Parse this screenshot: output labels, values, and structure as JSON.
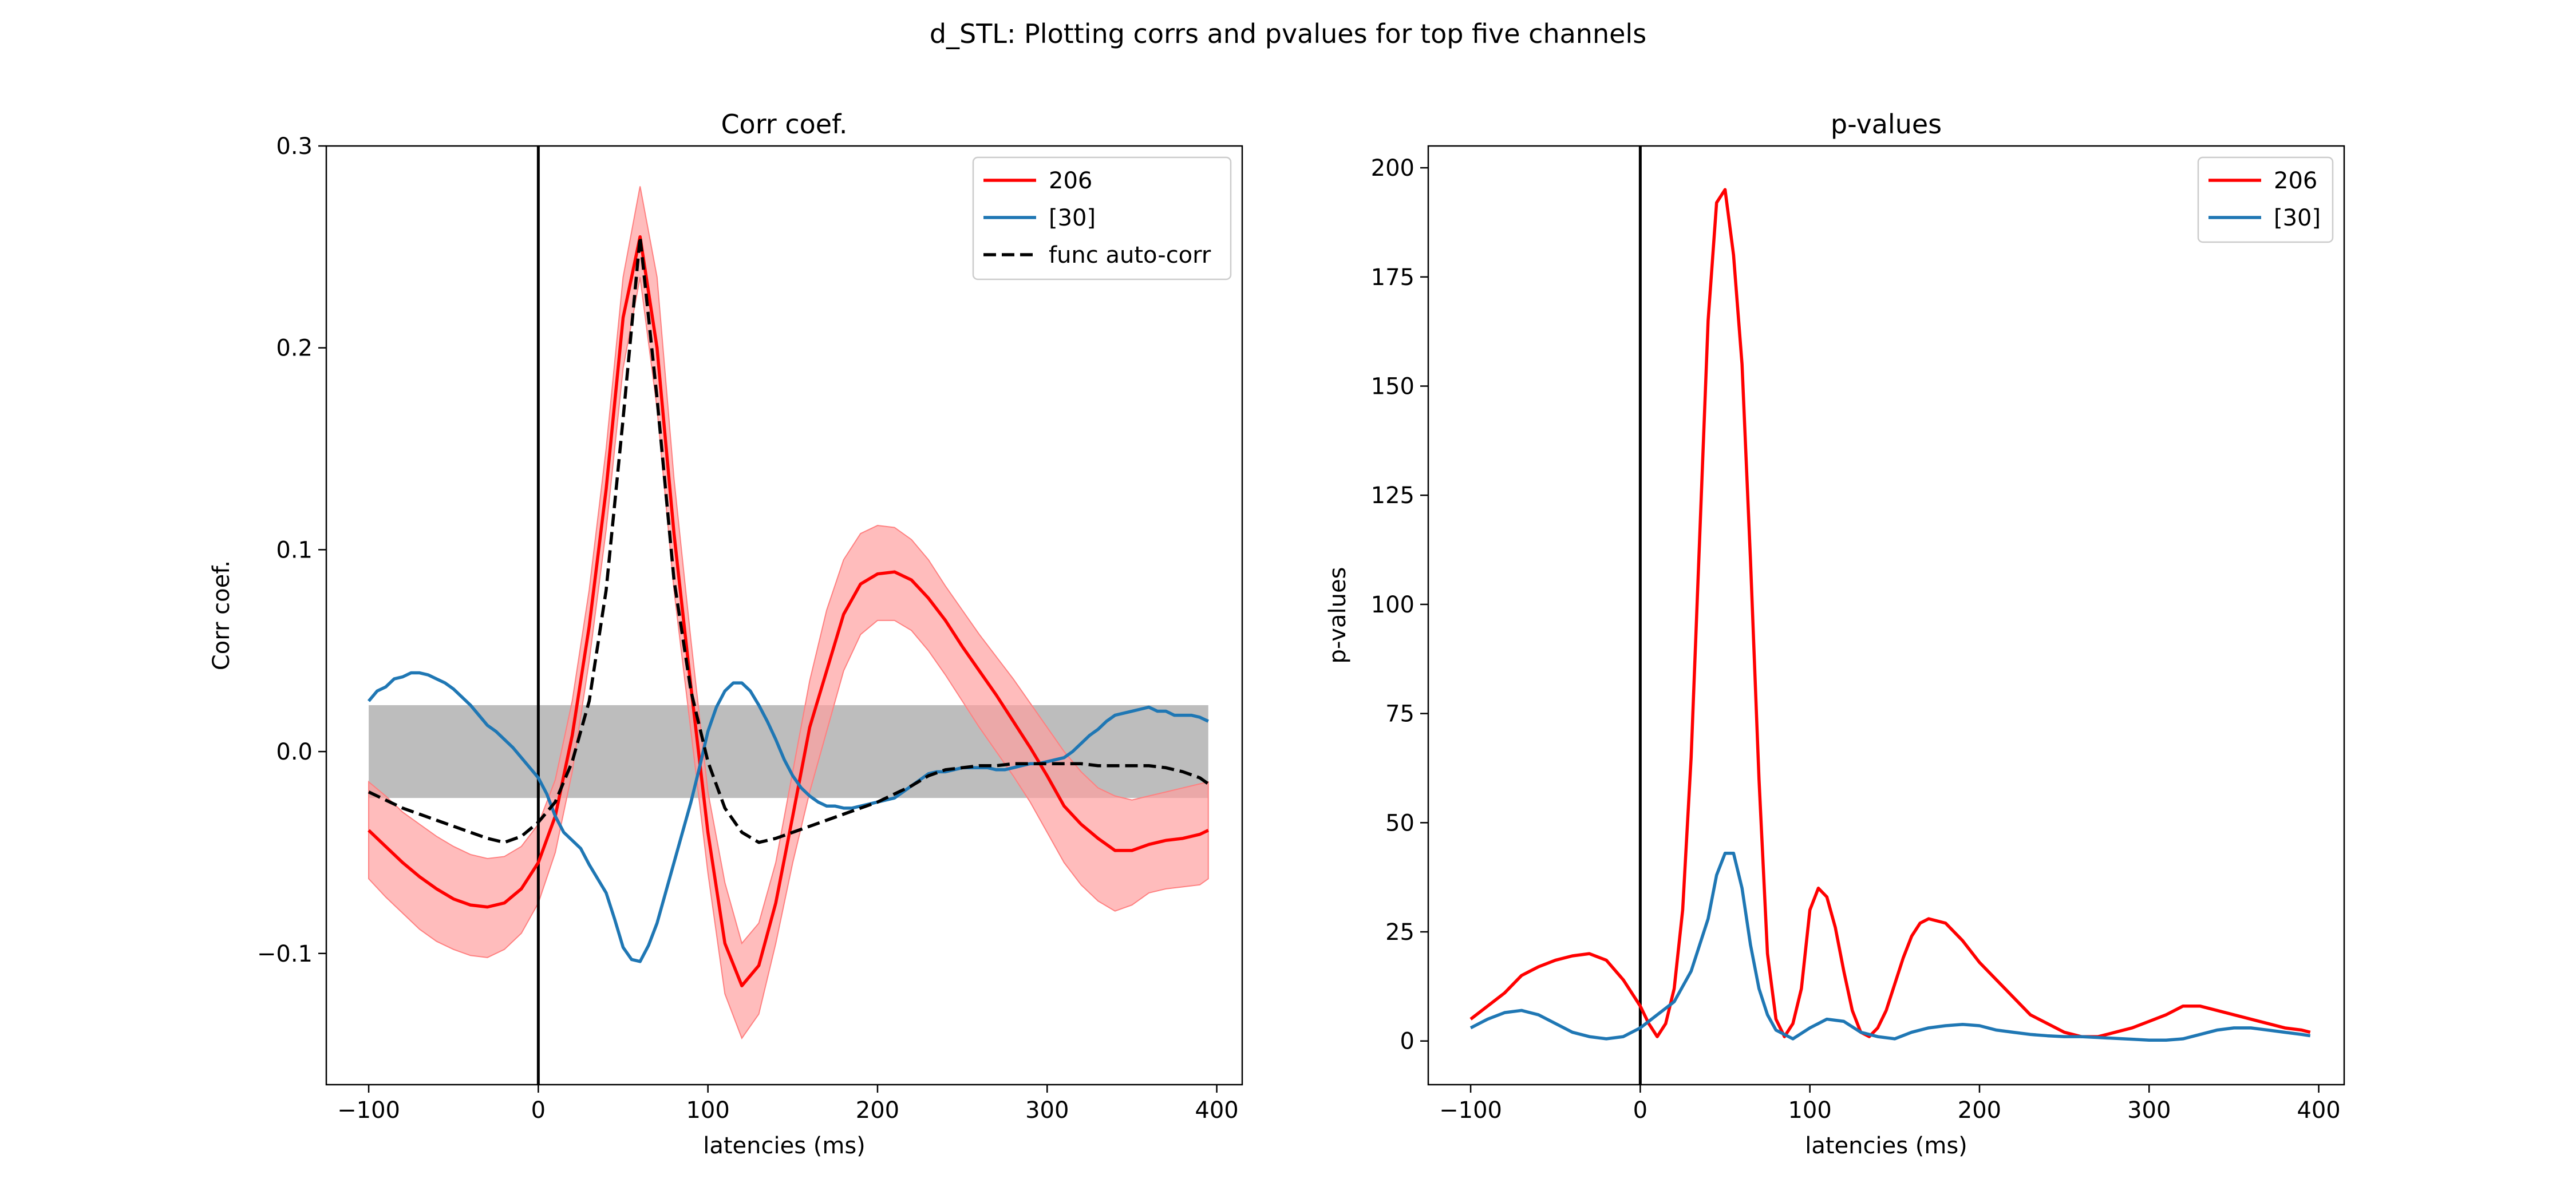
{
  "figure": {
    "suptitle": "d_STL: Plotting corrs and pvalues for top five channels"
  },
  "colors": {
    "red": "#ff0000",
    "blue": "#1f77b4",
    "black": "#000000",
    "red_band": "#ff9f9f",
    "grey_band": "#bdbdbd"
  },
  "chart_data": [
    {
      "type": "line",
      "title": "Corr coef.",
      "xlabel": "latencies (ms)",
      "ylabel": "Corr coef.",
      "xlim": [
        -125,
        415
      ],
      "ylim": [
        -0.165,
        0.3
      ],
      "xticks": [
        -100,
        0,
        100,
        200,
        300,
        400
      ],
      "xtick_labels": [
        "−100",
        "0",
        "100",
        "200",
        "300",
        "400"
      ],
      "yticks": [
        -0.1,
        0.0,
        0.1,
        0.2,
        0.3
      ],
      "ytick_labels": [
        "−0.1",
        "0.0",
        "0.1",
        "0.2",
        "0.3"
      ],
      "grid": false,
      "legend_position": "top-right",
      "vertical_line_x": 0,
      "bands": [
        {
          "color": "grey_band",
          "x": [
            -100,
            395
          ],
          "lower": [
            -0.023,
            -0.023
          ],
          "upper": [
            0.023,
            0.023
          ]
        },
        {
          "color": "red_band",
          "x": [
            -100,
            -90,
            -80,
            -70,
            -60,
            -50,
            -40,
            -30,
            -20,
            -10,
            0,
            10,
            20,
            30,
            40,
            50,
            60,
            70,
            80,
            90,
            100,
            110,
            120,
            130,
            140,
            150,
            160,
            170,
            180,
            190,
            200,
            210,
            220,
            230,
            240,
            250,
            260,
            270,
            280,
            290,
            300,
            310,
            320,
            330,
            340,
            350,
            360,
            370,
            380,
            390,
            395
          ],
          "lower": [
            -0.063,
            -0.072,
            -0.08,
            -0.088,
            -0.094,
            -0.098,
            -0.101,
            -0.102,
            -0.098,
            -0.09,
            -0.075,
            -0.05,
            -0.01,
            0.045,
            0.11,
            0.19,
            0.235,
            0.17,
            0.08,
            0.01,
            -0.06,
            -0.12,
            -0.142,
            -0.13,
            -0.095,
            -0.055,
            -0.02,
            0.01,
            0.04,
            0.058,
            0.065,
            0.065,
            0.06,
            0.05,
            0.038,
            0.025,
            0.012,
            0.0,
            -0.012,
            -0.025,
            -0.04,
            -0.055,
            -0.066,
            -0.074,
            -0.079,
            -0.076,
            -0.07,
            -0.068,
            -0.067,
            -0.066,
            -0.063
          ],
          "upper": [
            -0.015,
            -0.022,
            -0.03,
            -0.036,
            -0.042,
            -0.047,
            -0.051,
            -0.053,
            -0.052,
            -0.047,
            -0.036,
            -0.014,
            0.025,
            0.08,
            0.15,
            0.235,
            0.28,
            0.235,
            0.135,
            0.055,
            -0.02,
            -0.065,
            -0.095,
            -0.085,
            -0.055,
            -0.01,
            0.035,
            0.07,
            0.095,
            0.108,
            0.112,
            0.111,
            0.105,
            0.095,
            0.082,
            0.07,
            0.058,
            0.047,
            0.036,
            0.024,
            0.012,
            0.0,
            -0.01,
            -0.018,
            -0.022,
            -0.024,
            -0.022,
            -0.02,
            -0.018,
            -0.016,
            -0.015
          ]
        }
      ],
      "series": [
        {
          "name": "206",
          "color": "red",
          "dash": "solid",
          "x": [
            -100,
            -90,
            -80,
            -70,
            -60,
            -50,
            -40,
            -30,
            -20,
            -10,
            0,
            10,
            20,
            30,
            40,
            50,
            60,
            70,
            80,
            90,
            100,
            110,
            120,
            130,
            140,
            150,
            160,
            170,
            180,
            190,
            200,
            210,
            220,
            230,
            240,
            250,
            260,
            270,
            280,
            290,
            300,
            310,
            320,
            330,
            340,
            350,
            360,
            370,
            380,
            390,
            395
          ],
          "values": [
            -0.039,
            -0.047,
            -0.055,
            -0.062,
            -0.068,
            -0.073,
            -0.076,
            -0.077,
            -0.075,
            -0.068,
            -0.055,
            -0.032,
            0.008,
            0.062,
            0.13,
            0.215,
            0.255,
            0.2,
            0.108,
            0.032,
            -0.04,
            -0.095,
            -0.116,
            -0.106,
            -0.075,
            -0.032,
            0.012,
            0.04,
            0.068,
            0.083,
            0.088,
            0.089,
            0.085,
            0.076,
            0.065,
            0.052,
            0.04,
            0.028,
            0.015,
            0.002,
            -0.012,
            -0.027,
            -0.036,
            -0.043,
            -0.049,
            -0.049,
            -0.046,
            -0.044,
            -0.043,
            -0.041,
            -0.039
          ]
        },
        {
          "name": "[30]",
          "color": "blue",
          "dash": "solid",
          "x": [
            -100,
            -95,
            -90,
            -85,
            -80,
            -75,
            -70,
            -65,
            -60,
            -55,
            -50,
            -45,
            -40,
            -35,
            -30,
            -25,
            -20,
            -15,
            -10,
            -5,
            0,
            5,
            10,
            15,
            20,
            25,
            30,
            35,
            40,
            45,
            50,
            55,
            60,
            65,
            70,
            75,
            80,
            85,
            90,
            95,
            100,
            105,
            110,
            115,
            120,
            125,
            130,
            135,
            140,
            145,
            150,
            155,
            160,
            165,
            170,
            175,
            180,
            185,
            190,
            195,
            200,
            205,
            210,
            215,
            220,
            225,
            230,
            235,
            240,
            245,
            250,
            255,
            260,
            265,
            270,
            275,
            280,
            285,
            290,
            295,
            300,
            305,
            310,
            315,
            320,
            325,
            330,
            335,
            340,
            345,
            350,
            355,
            360,
            365,
            370,
            375,
            380,
            385,
            390,
            395
          ],
          "values": [
            0.025,
            0.03,
            0.032,
            0.036,
            0.037,
            0.039,
            0.039,
            0.038,
            0.036,
            0.034,
            0.031,
            0.027,
            0.023,
            0.018,
            0.013,
            0.01,
            0.006,
            0.002,
            -0.003,
            -0.008,
            -0.013,
            -0.021,
            -0.032,
            -0.04,
            -0.044,
            -0.048,
            -0.056,
            -0.063,
            -0.07,
            -0.083,
            -0.097,
            -0.103,
            -0.104,
            -0.096,
            -0.085,
            -0.07,
            -0.055,
            -0.04,
            -0.025,
            -0.008,
            0.01,
            0.022,
            0.03,
            0.034,
            0.034,
            0.03,
            0.023,
            0.015,
            0.006,
            -0.004,
            -0.012,
            -0.018,
            -0.022,
            -0.025,
            -0.027,
            -0.027,
            -0.028,
            -0.028,
            -0.027,
            -0.026,
            -0.025,
            -0.024,
            -0.023,
            -0.02,
            -0.017,
            -0.014,
            -0.011,
            -0.01,
            -0.01,
            -0.009,
            -0.008,
            -0.008,
            -0.008,
            -0.008,
            -0.009,
            -0.009,
            -0.008,
            -0.007,
            -0.006,
            -0.006,
            -0.005,
            -0.004,
            -0.003,
            0.0,
            0.004,
            0.008,
            0.011,
            0.015,
            0.018,
            0.019,
            0.02,
            0.021,
            0.022,
            0.02,
            0.02,
            0.018,
            0.018,
            0.018,
            0.017,
            0.015
          ]
        },
        {
          "name": "func auto-corr",
          "color": "black",
          "dash": "dashed",
          "x": [
            -100,
            -90,
            -80,
            -70,
            -60,
            -50,
            -40,
            -30,
            -20,
            -10,
            0,
            10,
            20,
            30,
            40,
            50,
            60,
            70,
            80,
            90,
            100,
            110,
            120,
            130,
            140,
            150,
            160,
            170,
            180,
            190,
            200,
            210,
            220,
            230,
            240,
            250,
            260,
            270,
            280,
            290,
            300,
            310,
            320,
            330,
            340,
            350,
            360,
            370,
            380,
            390,
            395
          ],
          "values": [
            -0.02,
            -0.024,
            -0.028,
            -0.031,
            -0.034,
            -0.037,
            -0.04,
            -0.043,
            -0.045,
            -0.042,
            -0.035,
            -0.025,
            -0.005,
            0.025,
            0.08,
            0.165,
            0.255,
            0.175,
            0.085,
            0.03,
            -0.005,
            -0.028,
            -0.04,
            -0.045,
            -0.043,
            -0.04,
            -0.037,
            -0.034,
            -0.031,
            -0.028,
            -0.025,
            -0.021,
            -0.017,
            -0.012,
            -0.009,
            -0.008,
            -0.007,
            -0.007,
            -0.006,
            -0.006,
            -0.006,
            -0.006,
            -0.006,
            -0.007,
            -0.007,
            -0.007,
            -0.007,
            -0.008,
            -0.01,
            -0.013,
            -0.016
          ]
        }
      ]
    },
    {
      "type": "line",
      "title": "p-values",
      "xlabel": "latencies (ms)",
      "ylabel": "p-values",
      "xlim": [
        -125,
        415
      ],
      "ylim": [
        -10,
        205
      ],
      "xticks": [
        -100,
        0,
        100,
        200,
        300,
        400
      ],
      "xtick_labels": [
        "−100",
        "0",
        "100",
        "200",
        "300",
        "400"
      ],
      "yticks": [
        0,
        25,
        50,
        75,
        100,
        125,
        150,
        175,
        200
      ],
      "ytick_labels": [
        "0",
        "25",
        "50",
        "75",
        "100",
        "125",
        "150",
        "175",
        "200"
      ],
      "grid": false,
      "legend_position": "top-right",
      "vertical_line_x": 0,
      "bands": [],
      "series": [
        {
          "name": "206",
          "color": "red",
          "dash": "solid",
          "x": [
            -100,
            -90,
            -80,
            -70,
            -60,
            -50,
            -40,
            -30,
            -20,
            -10,
            0,
            5,
            10,
            15,
            20,
            25,
            30,
            35,
            40,
            45,
            50,
            55,
            60,
            65,
            70,
            75,
            80,
            85,
            90,
            95,
            100,
            105,
            110,
            115,
            120,
            125,
            130,
            135,
            140,
            145,
            150,
            155,
            160,
            165,
            170,
            180,
            190,
            200,
            210,
            220,
            230,
            240,
            250,
            260,
            270,
            280,
            290,
            300,
            310,
            320,
            330,
            340,
            350,
            360,
            370,
            380,
            390,
            395
          ],
          "values": [
            5,
            8,
            11,
            15,
            17,
            18.5,
            19.5,
            20,
            18.5,
            14,
            8,
            4,
            1,
            4,
            12,
            30,
            65,
            115,
            165,
            192,
            195,
            180,
            155,
            110,
            60,
            20,
            5,
            1,
            4,
            12,
            30,
            35,
            33,
            26,
            16,
            7,
            2,
            1,
            3,
            7,
            13,
            19,
            24,
            27,
            28,
            27,
            23,
            18,
            14,
            10,
            6,
            4,
            2,
            1,
            1,
            2,
            3,
            4.5,
            6,
            8,
            8,
            7,
            6,
            5,
            4,
            3,
            2.5,
            2
          ]
        },
        {
          "name": "[30]",
          "color": "blue",
          "dash": "solid",
          "x": [
            -100,
            -90,
            -80,
            -70,
            -60,
            -50,
            -40,
            -30,
            -20,
            -10,
            0,
            10,
            20,
            30,
            40,
            45,
            50,
            55,
            60,
            65,
            70,
            75,
            80,
            90,
            100,
            110,
            120,
            130,
            140,
            150,
            160,
            170,
            180,
            190,
            200,
            210,
            220,
            230,
            240,
            250,
            260,
            270,
            280,
            290,
            300,
            310,
            320,
            330,
            340,
            350,
            360,
            370,
            380,
            390,
            395
          ],
          "values": [
            3,
            5,
            6.5,
            7,
            6,
            4,
            2,
            1,
            0.5,
            1,
            3,
            6,
            9,
            16,
            28,
            38,
            43,
            43,
            35,
            22,
            12,
            6,
            2.5,
            0.5,
            3,
            5,
            4.5,
            2,
            1,
            0.5,
            2,
            3,
            3.5,
            3.8,
            3.5,
            2.5,
            2,
            1.5,
            1.2,
            1,
            1,
            0.8,
            0.6,
            0.4,
            0.2,
            0.2,
            0.5,
            1.5,
            2.5,
            3,
            3,
            2.5,
            2,
            1.5,
            1.2
          ]
        }
      ]
    }
  ]
}
